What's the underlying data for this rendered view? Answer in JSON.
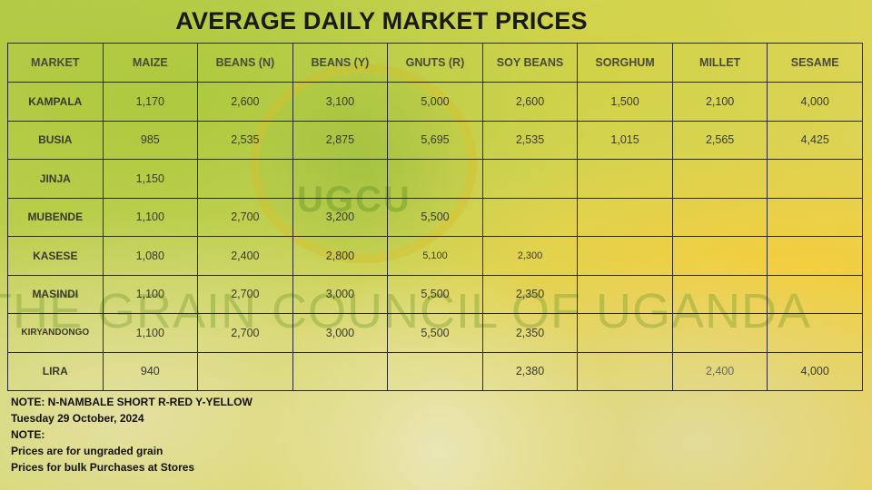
{
  "title": "AVERAGE DAILY MARKET PRICES",
  "watermark": "THE GRAIN COUNCIL OF UGANDA",
  "logo_text": "UGCU",
  "table": {
    "headers": [
      "MARKET",
      "MAIZE",
      "BEANS (N)",
      "BEANS (Y)",
      "GNUTS (R)",
      "SOY BEANS",
      "SORGHUM",
      "MILLET",
      "SESAME"
    ],
    "rows": [
      {
        "market": "KAMPALA",
        "cells": [
          "1,170",
          "2,600",
          "3,100",
          "5,000",
          "2,600",
          "1,500",
          "2,100",
          "4,000"
        ]
      },
      {
        "market": "BUSIA",
        "cells": [
          "985",
          "2,535",
          "2,875",
          "5,695",
          "2,535",
          "1,015",
          "2,565",
          "4,425"
        ]
      },
      {
        "market": "JINJA",
        "cells": [
          "1,150",
          "",
          "",
          "",
          "",
          "",
          "",
          ""
        ]
      },
      {
        "market": "MUBENDE",
        "cells": [
          "1,100",
          "2,700",
          "3,200",
          "5,500",
          "",
          "",
          "",
          ""
        ]
      },
      {
        "market": "KASESE",
        "cells": [
          "1,080",
          "2,400",
          "2,800",
          "5,100",
          "2,300",
          "",
          "",
          ""
        ]
      },
      {
        "market": "MASINDI",
        "cells": [
          "1,100",
          "2,700",
          "3,000",
          "5,500",
          "2,350",
          "",
          "",
          ""
        ]
      },
      {
        "market": "KIRYANDONGO",
        "cells": [
          "1,100",
          "2,700",
          "3,000",
          "5,500",
          "2,350",
          "",
          "",
          ""
        ]
      },
      {
        "market": "LIRA",
        "cells": [
          "940",
          "",
          "",
          "",
          "2,380",
          "",
          "2,400",
          "4,000"
        ]
      }
    ]
  },
  "notes": {
    "line1": "NOTE: N-NAMBALE SHORT R-RED Y-YELLOW",
    "line2": "Tuesday 29 October, 2024",
    "line3": "NOTE:",
    "line4": "Prices are for ungraded grain",
    "line5": "Prices for bulk Purchases at Stores"
  }
}
